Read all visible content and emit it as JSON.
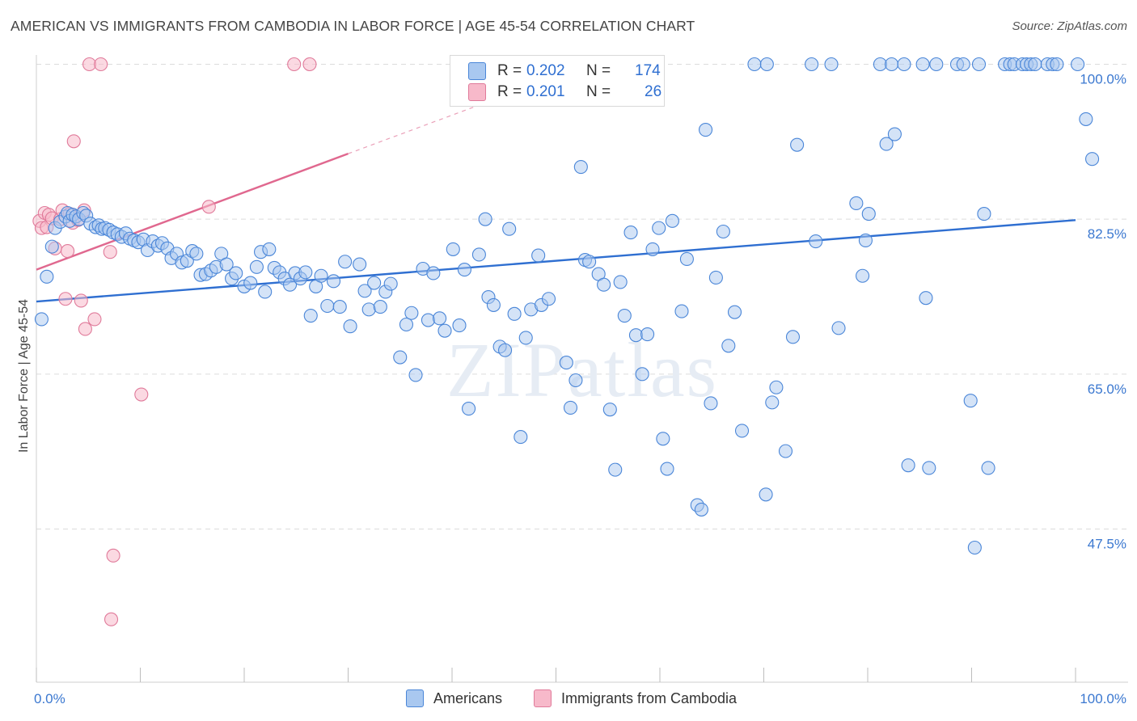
{
  "title": "AMERICAN VS IMMIGRANTS FROM CAMBODIA IN LABOR FORCE | AGE 45-54 CORRELATION CHART",
  "source": "Source: ZipAtlas.com",
  "watermark": "ZIPatlas",
  "legend": {
    "r_label": "R =",
    "n_label": "N =",
    "series": [
      {
        "name": "Americans",
        "r": "0.202",
        "n": "174",
        "fill": "#a9c8f0",
        "stroke": "#4a86d8"
      },
      {
        "name": "Immigrants from Cambodia",
        "r": "0.201",
        "n": "26",
        "fill": "#f7b9ca",
        "stroke": "#e07a9a"
      }
    ]
  },
  "chart_data": {
    "type": "scatter",
    "title": "AMERICAN VS IMMIGRANTS FROM CAMBODIA IN LABOR FORCE | AGE 45-54 CORRELATION CHART",
    "xlabel": "",
    "ylabel": "In Labor Force | Age 45-54",
    "xlim": [
      0,
      100
    ],
    "ylim": [
      32,
      101.5
    ],
    "x_tick_labels": [
      "0.0%",
      "100.0%"
    ],
    "y_tick_labels": [
      "100.0%",
      "82.5%",
      "65.0%",
      "47.5%"
    ],
    "y_ticks": [
      100,
      82.5,
      65,
      47.5
    ],
    "grid": true,
    "legend_position": "top-center",
    "colors": {
      "americans": "#4a86d8",
      "americans_fill": "#a9c8f0",
      "cambodia": "#e07a9a",
      "cambodia_fill": "#f7b9ca",
      "tick_label": "#3b78d0"
    },
    "series": [
      {
        "name": "Americans",
        "trend": {
          "x": [
            0,
            100
          ],
          "y": [
            73.2,
            82.4
          ]
        },
        "points": [
          [
            0.5,
            71.2
          ],
          [
            1,
            76.0
          ],
          [
            1.5,
            79.4
          ],
          [
            1.8,
            81.5
          ],
          [
            2.3,
            82.2
          ],
          [
            2.8,
            82.8
          ],
          [
            3,
            83.2
          ],
          [
            3.2,
            82.3
          ],
          [
            3.5,
            83.0
          ],
          [
            3.8,
            82.8
          ],
          [
            4.1,
            82.5
          ],
          [
            4.5,
            83.2
          ],
          [
            4.8,
            82.9
          ],
          [
            5.2,
            82.0
          ],
          [
            5.7,
            81.6
          ],
          [
            6,
            81.8
          ],
          [
            6.3,
            81.4
          ],
          [
            6.6,
            81.5
          ],
          [
            7,
            81.3
          ],
          [
            7.4,
            81.0
          ],
          [
            7.8,
            80.8
          ],
          [
            8.2,
            80.5
          ],
          [
            8.6,
            80.9
          ],
          [
            9,
            80.3
          ],
          [
            9.4,
            80.1
          ],
          [
            9.8,
            79.9
          ],
          [
            10.3,
            80.2
          ],
          [
            10.7,
            79.0
          ],
          [
            11.2,
            80.0
          ],
          [
            11.7,
            79.5
          ],
          [
            12.1,
            79.8
          ],
          [
            12.6,
            79.2
          ],
          [
            13,
            78.1
          ],
          [
            13.5,
            78.6
          ],
          [
            14,
            77.6
          ],
          [
            14.5,
            77.8
          ],
          [
            15,
            78.9
          ],
          [
            15.4,
            78.6
          ],
          [
            15.8,
            76.2
          ],
          [
            16.3,
            76.3
          ],
          [
            16.8,
            76.7
          ],
          [
            17.3,
            77.1
          ],
          [
            17.8,
            78.6
          ],
          [
            18.3,
            77.4
          ],
          [
            18.8,
            75.8
          ],
          [
            19.2,
            76.4
          ],
          [
            20,
            74.9
          ],
          [
            20.6,
            75.3
          ],
          [
            21.2,
            77.1
          ],
          [
            21.6,
            78.8
          ],
          [
            22,
            74.3
          ],
          [
            22.4,
            79.1
          ],
          [
            22.9,
            77.0
          ],
          [
            23.4,
            76.5
          ],
          [
            23.9,
            75.8
          ],
          [
            24.4,
            75.1
          ],
          [
            24.9,
            76.4
          ],
          [
            25.4,
            75.8
          ],
          [
            25.9,
            76.5
          ],
          [
            26.4,
            71.6
          ],
          [
            26.9,
            74.9
          ],
          [
            27.4,
            76.1
          ],
          [
            28,
            72.7
          ],
          [
            28.6,
            75.5
          ],
          [
            29.2,
            72.6
          ],
          [
            29.7,
            77.7
          ],
          [
            30.2,
            70.4
          ],
          [
            31.1,
            77.4
          ],
          [
            31.6,
            74.4
          ],
          [
            32,
            72.3
          ],
          [
            32.5,
            75.3
          ],
          [
            33.1,
            72.6
          ],
          [
            33.6,
            74.3
          ],
          [
            34.1,
            75.2
          ],
          [
            35,
            66.9
          ],
          [
            35.6,
            70.6
          ],
          [
            36.1,
            71.9
          ],
          [
            36.5,
            64.9
          ],
          [
            37.2,
            76.9
          ],
          [
            37.7,
            71.1
          ],
          [
            38.2,
            76.4
          ],
          [
            38.8,
            71.3
          ],
          [
            39.3,
            69.9
          ],
          [
            40.1,
            79.1
          ],
          [
            40.7,
            70.5
          ],
          [
            41.2,
            76.8
          ],
          [
            41.6,
            61.1
          ],
          [
            42.6,
            78.5
          ],
          [
            43.2,
            82.5
          ],
          [
            43.5,
            73.7
          ],
          [
            44,
            72.8
          ],
          [
            44.6,
            68.1
          ],
          [
            45.1,
            67.7
          ],
          [
            45.5,
            81.4
          ],
          [
            46,
            71.8
          ],
          [
            46.6,
            57.9
          ],
          [
            47.1,
            69.1
          ],
          [
            47.6,
            72.3
          ],
          [
            48.3,
            78.4
          ],
          [
            48.6,
            72.8
          ],
          [
            49.3,
            73.5
          ],
          [
            49.6,
            100
          ],
          [
            50.1,
            100
          ],
          [
            50.5,
            100
          ],
          [
            51.0,
            66.3
          ],
          [
            51.4,
            61.2
          ],
          [
            51.9,
            64.3
          ],
          [
            52.4,
            88.4
          ],
          [
            52.8,
            77.9
          ],
          [
            53.2,
            77.7
          ],
          [
            54.1,
            76.3
          ],
          [
            54.6,
            75.1
          ],
          [
            55.2,
            61.0
          ],
          [
            55.7,
            54.2
          ],
          [
            56.2,
            75.4
          ],
          [
            56.6,
            71.6
          ],
          [
            57.2,
            81.0
          ],
          [
            57.7,
            69.4
          ],
          [
            58.3,
            65.0
          ],
          [
            58.8,
            69.5
          ],
          [
            59.3,
            79.1
          ],
          [
            59.9,
            81.5
          ],
          [
            60.3,
            57.7
          ],
          [
            60.7,
            54.3
          ],
          [
            61.2,
            82.3
          ],
          [
            62.1,
            72.1
          ],
          [
            62.6,
            78.0
          ],
          [
            63.6,
            50.2
          ],
          [
            64.0,
            49.7
          ],
          [
            64.4,
            92.6
          ],
          [
            64.9,
            61.7
          ],
          [
            65.4,
            75.9
          ],
          [
            66.1,
            81.1
          ],
          [
            66.6,
            68.2
          ],
          [
            67.2,
            72.0
          ],
          [
            67.9,
            58.6
          ],
          [
            69.1,
            100
          ],
          [
            70.2,
            51.4
          ],
          [
            70.3,
            100
          ],
          [
            70.8,
            61.8
          ],
          [
            71.2,
            63.5
          ],
          [
            72.1,
            56.3
          ],
          [
            72.8,
            69.2
          ],
          [
            73.2,
            90.9
          ],
          [
            74.6,
            100
          ],
          [
            75,
            80.0
          ],
          [
            76.5,
            100
          ],
          [
            77.2,
            70.2
          ],
          [
            78.9,
            84.3
          ],
          [
            79.5,
            76.1
          ],
          [
            79.8,
            80.1
          ],
          [
            80.1,
            83.1
          ],
          [
            81.2,
            100
          ],
          [
            81.8,
            91.0
          ],
          [
            82.3,
            100
          ],
          [
            82.6,
            92.1
          ],
          [
            83.5,
            100
          ],
          [
            83.9,
            54.7
          ],
          [
            85.3,
            100
          ],
          [
            85.6,
            73.6
          ],
          [
            85.9,
            54.4
          ],
          [
            86.6,
            100
          ],
          [
            88.6,
            100
          ],
          [
            89.2,
            100
          ],
          [
            89.9,
            62.0
          ],
          [
            90.3,
            45.4
          ],
          [
            90.7,
            100
          ],
          [
            91.2,
            83.1
          ],
          [
            91.6,
            54.4
          ],
          [
            93.2,
            100
          ],
          [
            93.7,
            100
          ],
          [
            94.1,
            100
          ],
          [
            94.9,
            100
          ],
          [
            95.3,
            100
          ],
          [
            95.7,
            100
          ],
          [
            96.1,
            100
          ],
          [
            97.3,
            100
          ],
          [
            97.8,
            100
          ],
          [
            98.2,
            100
          ],
          [
            100.2,
            100
          ],
          [
            101.0,
            93.8
          ],
          [
            101.6,
            89.3
          ]
        ]
      },
      {
        "name": "Immigrants from Cambodia",
        "trend": {
          "x": [
            0,
            30
          ],
          "y": [
            76.8,
            89.9
          ]
        },
        "trend_extended": {
          "x": [
            30,
            47
          ],
          "y": [
            89.9,
            97.3
          ]
        },
        "points": [
          [
            0.3,
            82.3
          ],
          [
            0.5,
            81.5
          ],
          [
            0.8,
            83.2
          ],
          [
            1.0,
            81.6
          ],
          [
            1.2,
            83.0
          ],
          [
            1.5,
            82.6
          ],
          [
            1.8,
            79.2
          ],
          [
            2.3,
            82.5
          ],
          [
            2.5,
            83.5
          ],
          [
            3.2,
            83.1
          ],
          [
            3.0,
            78.9
          ],
          [
            2.8,
            73.5
          ],
          [
            3.5,
            82.1
          ],
          [
            3.6,
            91.3
          ],
          [
            4.0,
            82.4
          ],
          [
            4.3,
            73.3
          ],
          [
            4.6,
            83.5
          ],
          [
            4.7,
            70.1
          ],
          [
            5.1,
            100
          ],
          [
            5.6,
            71.2
          ],
          [
            6.2,
            100
          ],
          [
            7.1,
            78.8
          ],
          [
            7.4,
            44.5
          ],
          [
            7.2,
            37.3
          ],
          [
            10.1,
            62.7
          ],
          [
            16.6,
            83.9
          ],
          [
            24.8,
            100
          ],
          [
            26.3,
            100
          ]
        ]
      }
    ]
  }
}
